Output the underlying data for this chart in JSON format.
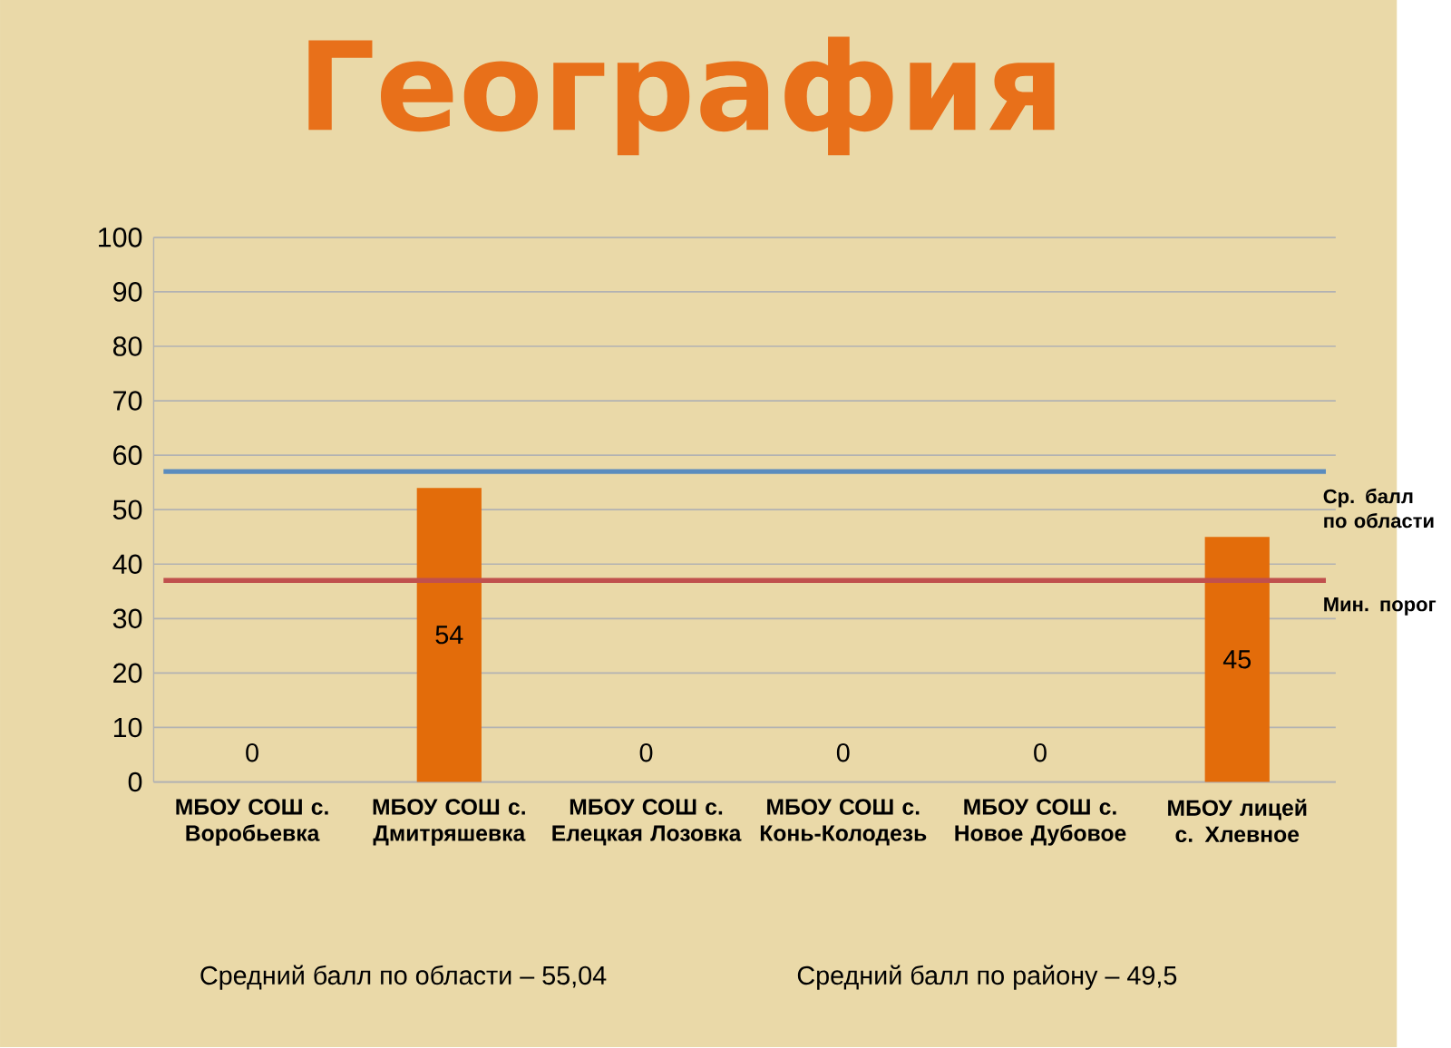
{
  "chart_data": {
    "type": "bar",
    "title": "География",
    "categories": [
      "МБОУ СОШ с. Воробьевка",
      "МБОУ СОШ с. Дмитряшевка",
      "МБОУ СОШ с. Елецкая Лозовка",
      "МБОУ СОШ с. Конь-Колодезь",
      "МБОУ СОШ с. Новое Дубовое",
      "МБОУ лицей с. Хлевное"
    ],
    "values": [
      0,
      54,
      0,
      0,
      0,
      45
    ],
    "value_labels": [
      "0",
      "54",
      "0",
      "0",
      "0",
      "45"
    ],
    "color": "#e36c0a",
    "ylim": [
      0,
      100
    ],
    "yticks": [
      0,
      10,
      20,
      30,
      40,
      50,
      60,
      70,
      80,
      90,
      100
    ],
    "grid": "y",
    "ref_lines": [
      {
        "axis": "y",
        "value": 57,
        "label": "Ср. балл по области",
        "color": "#5b8cbe"
      },
      {
        "axis": "y",
        "value": 37,
        "label": "Мин. порог",
        "color": "#c0504d"
      }
    ],
    "annotations": [
      "Средний балл по области – 55,04",
      "Средний балл по району – 49,5"
    ]
  }
}
